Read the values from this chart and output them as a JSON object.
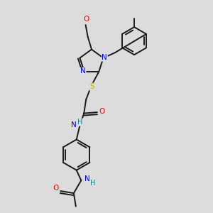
{
  "bg_color": "#dcdcdc",
  "bond_color": "#1a1a1a",
  "atom_colors": {
    "N": "#0000ee",
    "O": "#ee0000",
    "S": "#bbbb00",
    "H": "#008080",
    "C": "#1a1a1a"
  }
}
